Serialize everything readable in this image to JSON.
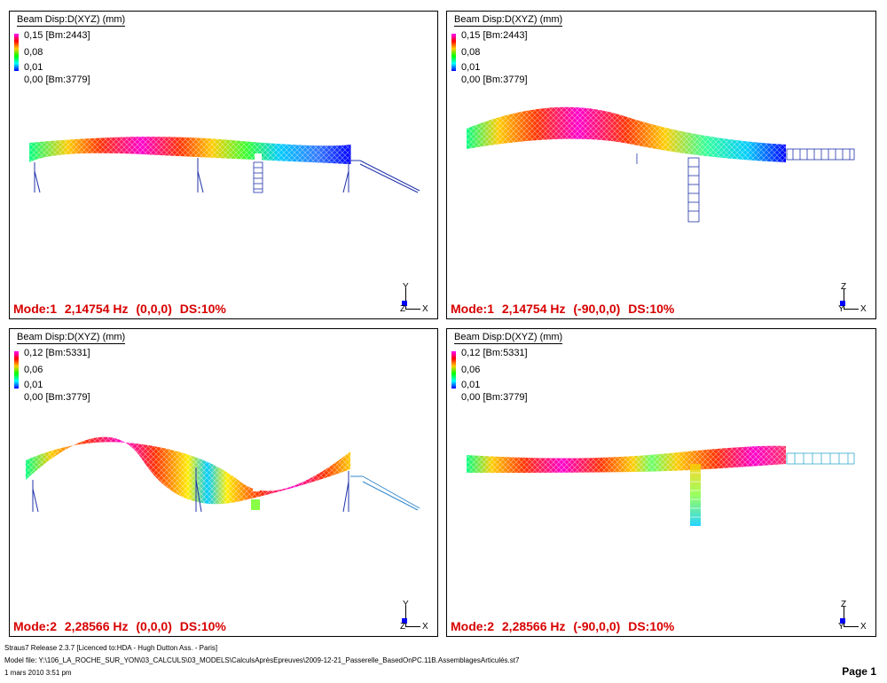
{
  "panels": [
    {
      "title": "Beam Disp:D(XYZ) (mm)",
      "legend": [
        "0,15 [Bm:2443]",
        "0,08",
        "0,01",
        "0,00 [Bm:3779]"
      ],
      "mode": "Mode:1",
      "freq": "2,14754 Hz",
      "angles": "(0,0,0)",
      "ds": "DS:10%",
      "triad": {
        "top": "Y",
        "bottom": "Z",
        "right": "X"
      },
      "view": "elevation"
    },
    {
      "title": "Beam Disp:D(XYZ) (mm)",
      "legend": [
        "0,15 [Bm:2443]",
        "0,08",
        "0,01",
        "0,00 [Bm:3779]"
      ],
      "mode": "Mode:1",
      "freq": "2,14754 Hz",
      "angles": "(-90,0,0)",
      "ds": "DS:10%",
      "triad": {
        "top": "Z",
        "bottom": "Y",
        "right": "X"
      },
      "view": "plan"
    },
    {
      "title": "Beam Disp:D(XYZ) (mm)",
      "legend": [
        "0,12 [Bm:5331]",
        "0,06",
        "0,01",
        "0,00 [Bm:3779]"
      ],
      "mode": "Mode:2",
      "freq": "2,28566 Hz",
      "angles": "(0,0,0)",
      "ds": "DS:10%",
      "triad": {
        "top": "Y",
        "bottom": "Z",
        "right": "X"
      },
      "view": "elevation"
    },
    {
      "title": "Beam Disp:D(XYZ) (mm)",
      "legend": [
        "0,12 [Bm:5331]",
        "0,06",
        "0,01",
        "0,00 [Bm:3779]"
      ],
      "mode": "Mode:2",
      "freq": "2,28566 Hz",
      "angles": "(-90,0,0)",
      "ds": "DS:10%",
      "triad": {
        "top": "Z",
        "bottom": "Y",
        "right": "X"
      },
      "view": "plan"
    }
  ],
  "footer": {
    "line1": "Straus7 Release 2.3.7 [Licenced to:HDA - Hugh Dutton Ass. - Paris]",
    "line2": "Model file: Y:\\106_LA_ROCHE_SUR_YON\\03_CALCULS\\03_MODELS\\CalculsAprèsEpreuves\\2009-12-21_Passerelle_BasedOnPC.11B.AssemblagesArticulés.st7",
    "line3": "1 mars 2010    3:51 pm",
    "page": "Page 1"
  },
  "colors": {
    "mode_text": "#d80000",
    "deck_frame": "#2233aa",
    "colormap": [
      "#ff00ff",
      "#ff0000",
      "#ffcc00",
      "#00ff00",
      "#00ffff",
      "#0000ff"
    ]
  }
}
